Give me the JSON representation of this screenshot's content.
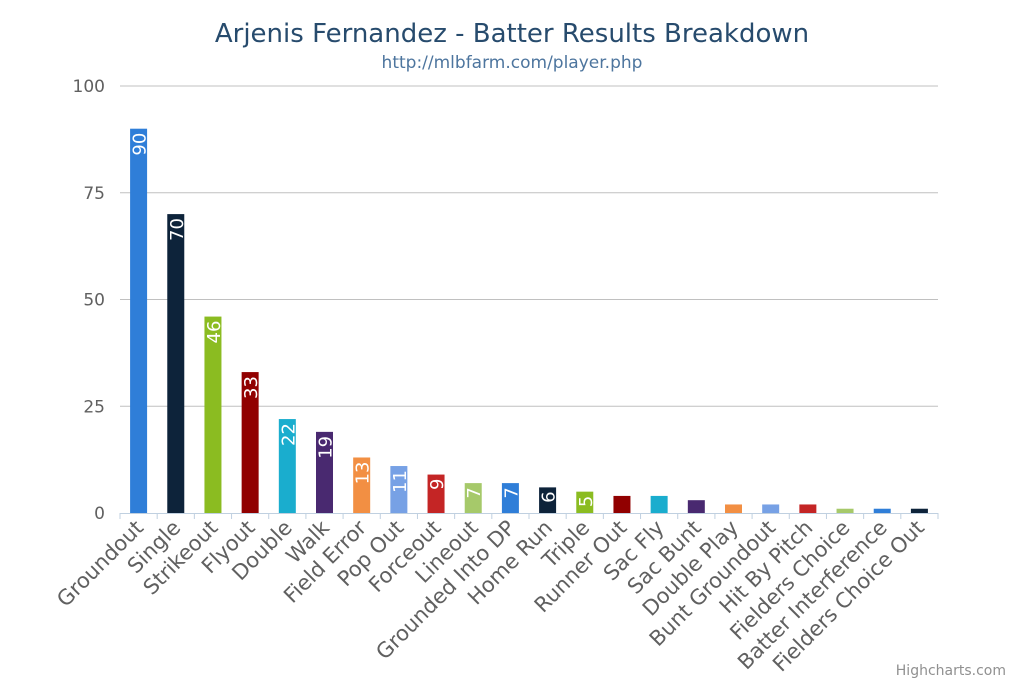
{
  "chart_data": {
    "type": "bar",
    "title": "Arjenis Fernandez - Batter Results Breakdown",
    "subtitle": "http://mlbfarm.com/player.php",
    "categories": [
      "Groundout",
      "Single",
      "Strikeout",
      "Flyout",
      "Double",
      "Walk",
      "Field Error",
      "Pop Out",
      "Forceout",
      "Lineout",
      "Grounded Into DP",
      "Home Run",
      "Triple",
      "Runner Out",
      "Sac Fly",
      "Sac Bunt",
      "Double Play",
      "Bunt Groundout",
      "Hit By Pitch",
      "Fielders Choice",
      "Batter Interference",
      "Fielders Choice Out"
    ],
    "values": [
      90,
      70,
      46,
      33,
      22,
      19,
      13,
      11,
      9,
      7,
      7,
      6,
      5,
      4,
      4,
      3,
      2,
      2,
      2,
      1,
      1,
      1
    ],
    "data_labels": [
      "90",
      "70",
      "46",
      "33",
      "22",
      "19",
      "13",
      "11",
      "9",
      "7",
      "7",
      "6",
      "5",
      "",
      "",
      "",
      "",
      "",
      "",
      "",
      "",
      ""
    ],
    "colors": [
      "#2f7ed8",
      "#0d233a",
      "#8bbc21",
      "#910000",
      "#1aadce",
      "#492970",
      "#f28f43",
      "#77a1e5",
      "#c42525",
      "#a6c96a",
      "#2f7ed8",
      "#0d233a",
      "#8bbc21",
      "#910000",
      "#1aadce",
      "#492970",
      "#f28f43",
      "#77a1e5",
      "#c42525",
      "#a6c96a",
      "#2f7ed8",
      "#0d233a"
    ],
    "yticks": [
      0,
      25,
      50,
      75,
      100
    ],
    "ylim": [
      0,
      100
    ],
    "grid": true,
    "legend": "none"
  },
  "credits": "Highcharts.com"
}
